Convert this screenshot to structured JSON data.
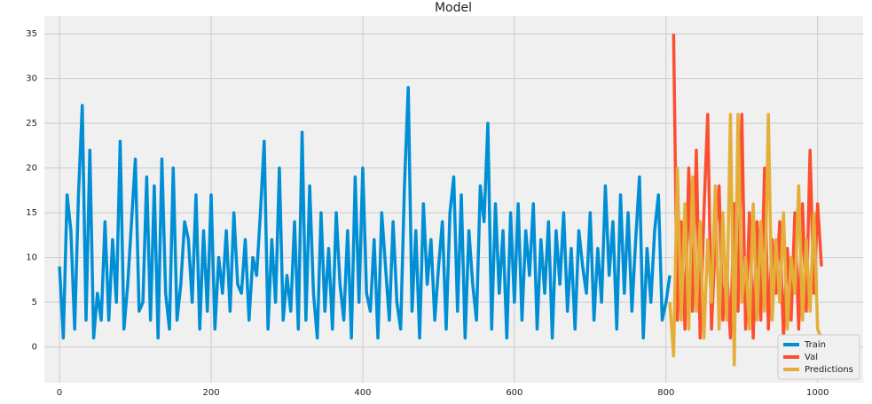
{
  "chart_data": {
    "type": "line",
    "title": "Model",
    "xlim": [
      -20,
      1060
    ],
    "ylim": [
      -4,
      37
    ],
    "xticks": [
      0,
      200,
      400,
      600,
      800,
      1000
    ],
    "yticks": [
      0,
      5,
      10,
      15,
      20,
      25,
      30,
      35
    ],
    "grid": true,
    "legend": "lower right",
    "series": [
      {
        "name": "Train",
        "color": "#008fd5",
        "x": [
          0,
          5,
          10,
          15,
          20,
          25,
          30,
          35,
          40,
          45,
          50,
          55,
          60,
          65,
          70,
          75,
          80,
          85,
          90,
          95,
          100,
          105,
          110,
          115,
          120,
          125,
          130,
          135,
          140,
          145,
          150,
          155,
          160,
          165,
          170,
          175,
          180,
          185,
          190,
          195,
          200,
          205,
          210,
          215,
          220,
          225,
          230,
          235,
          240,
          245,
          250,
          255,
          260,
          265,
          270,
          275,
          280,
          285,
          290,
          295,
          300,
          305,
          310,
          315,
          320,
          325,
          330,
          335,
          340,
          345,
          350,
          355,
          360,
          365,
          370,
          375,
          380,
          385,
          390,
          395,
          400,
          405,
          410,
          415,
          420,
          425,
          430,
          435,
          440,
          445,
          450,
          455,
          460,
          465,
          470,
          475,
          480,
          485,
          490,
          495,
          500,
          505,
          510,
          515,
          520,
          525,
          530,
          535,
          540,
          545,
          550,
          555,
          560,
          565,
          570,
          575,
          580,
          585,
          590,
          595,
          600,
          605,
          610,
          615,
          620,
          625,
          630,
          635,
          640,
          645,
          650,
          655,
          660,
          665,
          670,
          675,
          680,
          685,
          690,
          695,
          700,
          705,
          710,
          715,
          720,
          725,
          730,
          735,
          740,
          745,
          750,
          755,
          760,
          765,
          770,
          775,
          780,
          785,
          790,
          795,
          800,
          805
        ],
        "values": [
          9,
          1,
          17,
          13,
          2,
          17,
          27,
          3,
          22,
          1,
          6,
          3,
          14,
          3,
          12,
          5,
          23,
          2,
          7,
          14,
          21,
          4,
          5,
          19,
          3,
          18,
          1,
          21,
          6,
          2,
          20,
          3,
          7,
          14,
          12,
          5,
          17,
          2,
          13,
          4,
          17,
          2,
          10,
          6,
          13,
          4,
          15,
          7,
          6,
          12,
          3,
          10,
          8,
          15,
          23,
          2,
          12,
          5,
          20,
          3,
          8,
          4,
          14,
          2,
          24,
          3,
          18,
          6,
          1,
          15,
          4,
          11,
          2,
          15,
          7,
          3,
          13,
          1,
          19,
          5,
          20,
          6,
          4,
          12,
          1,
          15,
          9,
          3,
          14,
          5,
          2,
          18,
          29,
          4,
          13,
          1,
          16,
          7,
          12,
          3,
          9,
          14,
          2,
          15,
          19,
          4,
          17,
          1,
          13,
          7,
          3,
          18,
          14,
          25,
          2,
          16,
          6,
          13,
          1,
          15,
          5,
          16,
          3,
          13,
          8,
          16,
          2,
          12,
          6,
          14,
          1,
          13,
          7,
          15,
          4,
          11,
          2,
          13,
          9,
          6,
          15,
          3,
          11,
          5,
          18,
          8,
          14,
          2,
          17,
          6,
          15,
          4,
          12,
          19,
          1,
          11,
          5,
          13,
          17,
          3,
          5,
          8
        ]
      },
      {
        "name": "Val",
        "color": "#fc4f30",
        "x": [
          810,
          815,
          820,
          825,
          830,
          835,
          840,
          845,
          850,
          855,
          860,
          865,
          870,
          875,
          880,
          885,
          890,
          895,
          900,
          905,
          910,
          915,
          920,
          925,
          930,
          935,
          940,
          945,
          950,
          955,
          960,
          965,
          970,
          975,
          980,
          985,
          990,
          995,
          1000,
          1005
        ],
        "values": [
          35,
          3,
          14,
          2,
          20,
          4,
          22,
          1,
          15,
          26,
          2,
          12,
          18,
          3,
          9,
          1,
          16,
          4,
          26,
          2,
          15,
          1,
          14,
          3,
          20,
          2,
          12,
          6,
          14,
          1,
          11,
          3,
          15,
          2,
          16,
          4,
          22,
          6,
          16,
          9
        ]
      },
      {
        "name": "Predictions",
        "color": "#e5ae38",
        "x": [
          805,
          810,
          815,
          820,
          825,
          830,
          835,
          840,
          845,
          850,
          855,
          860,
          865,
          870,
          875,
          880,
          885,
          890,
          895,
          900,
          905,
          910,
          915,
          920,
          925,
          930,
          935,
          940,
          945,
          950,
          955,
          960,
          965,
          970,
          975,
          980,
          985,
          990,
          995,
          1000,
          1005
        ],
        "values": [
          5,
          -1,
          20,
          3,
          16,
          2,
          19,
          4,
          14,
          1,
          12,
          5,
          18,
          2,
          15,
          3,
          26,
          -2,
          26,
          5,
          10,
          2,
          16,
          3,
          14,
          4,
          26,
          3,
          12,
          5,
          15,
          2,
          10,
          6,
          18,
          3,
          12,
          4,
          15,
          2,
          1
        ]
      }
    ]
  }
}
